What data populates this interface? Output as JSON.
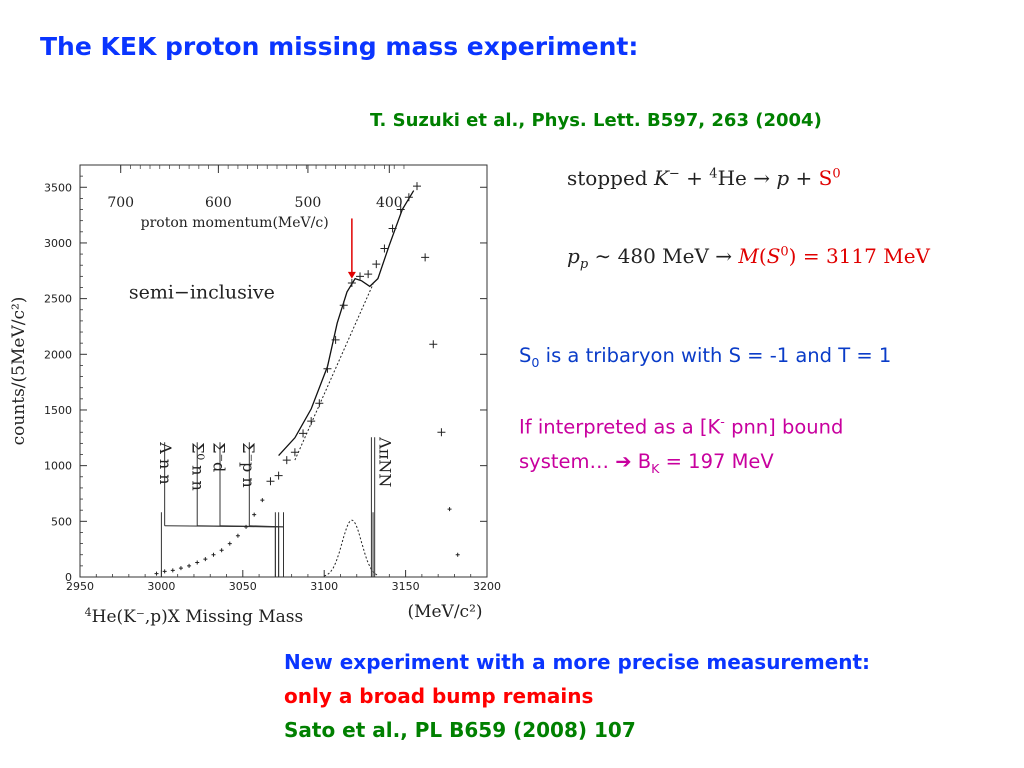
{
  "title": "The KEK proton missing mass experiment:",
  "reference": "T. Suzuki et al., Phys. Lett. B597, 263 (2004)",
  "equations": {
    "eq1": {
      "prefix": "stopped ",
      "k": "K",
      "minus": "−",
      "plus_he": " + ",
      "mass_number": "4",
      "he": "He",
      "arrow": " → ",
      "p": "p",
      "plus": " + ",
      "s": "S",
      "s_sup": "0"
    },
    "eq2": {
      "p": "p",
      "p_sub": "p",
      "sim": " ∼ 480 MeV ",
      "arrow": "  →  ",
      "m": "M",
      "lp": "(",
      "s": "S",
      "s_sup": "0",
      "rp": ")",
      "value": " = 3117 MeV"
    }
  },
  "notes": {
    "s": "S",
    "s_sub": "0",
    "s_rest": " is a tribaryon with S = -1 and T = 1",
    "interp_a": "If interpreted as a [K",
    "interp_sup": "-",
    "interp_b": " pnn] bound",
    "system": "system… ",
    "arrow": "➔",
    "bk": " B",
    "bk_sub": "K",
    "bk_val": " = 197 MeV"
  },
  "bottom": {
    "line1": "New experiment with a more precise measurement:",
    "line2": "only a broad bump remains",
    "line3": "Sato et al.,  PL B659 (2008) 107"
  },
  "colors": {
    "title_blue": "#0a35ff",
    "green": "#008000",
    "note_blue": "#0a3cc8",
    "magenta": "#c8009e",
    "red": "#e00000"
  },
  "chart_data": {
    "type": "scatter",
    "xlim": [
      2950,
      3200
    ],
    "ylim": [
      0,
      3700
    ],
    "xticks": [
      2950,
      3000,
      3050,
      3100,
      3150,
      3200
    ],
    "yticks": [
      0,
      500,
      1000,
      1500,
      2000,
      2500,
      3000,
      3500
    ],
    "xlabel": "He(K⁻,p)X Missing Mass",
    "xlabel_sup": "4",
    "xunit": "(MeV/c²)",
    "ylabel": "counts/(5MeV/c²)",
    "top_axis_label": "proton momentum(MeV/c)",
    "top_axis_ticks": [
      {
        "label": "700",
        "x": 2975
      },
      {
        "label": "600",
        "x": 3035
      },
      {
        "label": "500",
        "x": 3090
      },
      {
        "label": "400",
        "x": 3140
      }
    ],
    "inset_label": "semi−inclusive",
    "points": [
      [
        2997,
        30
      ],
      [
        3002,
        50
      ],
      [
        3007,
        60
      ],
      [
        3012,
        80
      ],
      [
        3017,
        100
      ],
      [
        3022,
        130
      ],
      [
        3027,
        160
      ],
      [
        3032,
        200
      ],
      [
        3037,
        240
      ],
      [
        3042,
        300
      ],
      [
        3047,
        370
      ],
      [
        3052,
        450
      ],
      [
        3057,
        560
      ],
      [
        3062,
        690
      ],
      [
        3067,
        860
      ],
      [
        3072,
        910
      ],
      [
        3077,
        1050
      ],
      [
        3082,
        1120
      ],
      [
        3087,
        1290
      ],
      [
        3092,
        1400
      ],
      [
        3097,
        1560
      ],
      [
        3102,
        1870
      ],
      [
        3107,
        2130
      ],
      [
        3112,
        2440
      ],
      [
        3117,
        2640
      ],
      [
        3122,
        2700
      ],
      [
        3127,
        2720
      ],
      [
        3132,
        2810
      ],
      [
        3137,
        2950
      ],
      [
        3142,
        3130
      ],
      [
        3147,
        3300
      ],
      [
        3152,
        3410
      ],
      [
        3157,
        3510
      ],
      [
        3162,
        2870
      ],
      [
        3167,
        2090
      ],
      [
        3172,
        1300
      ],
      [
        3177,
        610
      ],
      [
        3182,
        200
      ]
    ],
    "fit_curve": [
      [
        3072,
        1090
      ],
      [
        3082,
        1250
      ],
      [
        3092,
        1510
      ],
      [
        3102,
        1890
      ],
      [
        3108,
        2280
      ],
      [
        3114,
        2560
      ],
      [
        3119,
        2680
      ],
      [
        3123,
        2660
      ],
      [
        3128,
        2610
      ],
      [
        3133,
        2680
      ],
      [
        3140,
        2980
      ],
      [
        3148,
        3300
      ],
      [
        3155,
        3470
      ]
    ],
    "background_line": [
      [
        3082,
        1050
      ],
      [
        3130,
        2630
      ]
    ],
    "gaussian": {
      "center": 3117,
      "sigma": 6,
      "peak": 510,
      "from": 3100,
      "to": 3133
    },
    "thresholds": [
      {
        "label": "Λ n n",
        "x": 3000,
        "label_top_y": 1210
      },
      {
        "label": "Σ⁰ n n",
        "x": 3070,
        "label_top_y": 1210
      },
      {
        "label": "Σ⁻d",
        "x": 3072,
        "label_top_y": 1210
      },
      {
        "label": "Σ⁻p n",
        "x": 3075,
        "label_top_y": 1210
      },
      {
        "label": "ΛπNN",
        "x": 3130,
        "label_top_y": 1210
      }
    ],
    "peak_arrow_x": 3117
  }
}
